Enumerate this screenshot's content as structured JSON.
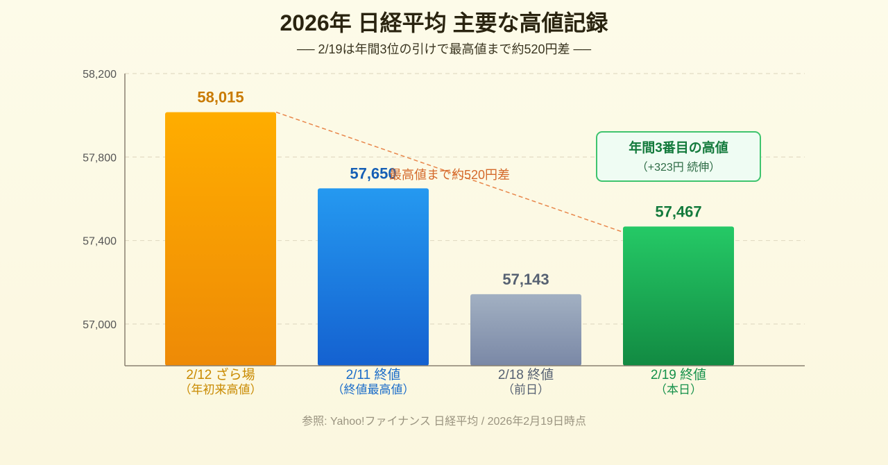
{
  "chart_data": {
    "type": "bar",
    "title": "2026年 日経平均 主要な高値記録",
    "subtitle": "── 2/19は年間3位の引けで最高値まで約520円差 ──",
    "ylim": [
      56800,
      58200
    ],
    "yticks": [
      57000,
      57400,
      57800,
      58200
    ],
    "ytick_labels": [
      "57,000",
      "57,400",
      "57,800",
      "58,200"
    ],
    "grid": true,
    "bars": [
      {
        "category": "2/12 ざら場",
        "sublabel": "（年初来高値）",
        "value": 58015,
        "value_label": "58,015",
        "label_color": "#c98a00",
        "value_color": "#c97a00",
        "color_top": "#ffad00",
        "color_bottom": "#ee8a06"
      },
      {
        "category": "2/11 終値",
        "sublabel": "（終値最高値）",
        "value": 57650,
        "value_label": "57,650",
        "label_color": "#1a6cc9",
        "value_color": "#155fb5",
        "color_top": "#2599f0",
        "color_bottom": "#1461d0"
      },
      {
        "category": "2/18 終値",
        "sublabel": "（前日）",
        "value": 57143,
        "value_label": "57,143",
        "label_color": "#566172",
        "value_color": "#566172",
        "color_top": "#a2b0c2",
        "color_bottom": "#7a88a6"
      },
      {
        "category": "2/19 終値",
        "sublabel": "（本日）",
        "value": 57467,
        "value_label": "57,467",
        "label_color": "#15914a",
        "value_color": "#137a3c",
        "color_top": "#25c966",
        "color_bottom": "#128a42"
      }
    ],
    "annotation_gap": "最高値まで約520円差",
    "callout": {
      "title": "年間3番目の高値",
      "detail": "（+323円 続伸）"
    },
    "source": "参照: Yahoo!ファイナンス 日経平均 / 2026年2月19日時点"
  }
}
